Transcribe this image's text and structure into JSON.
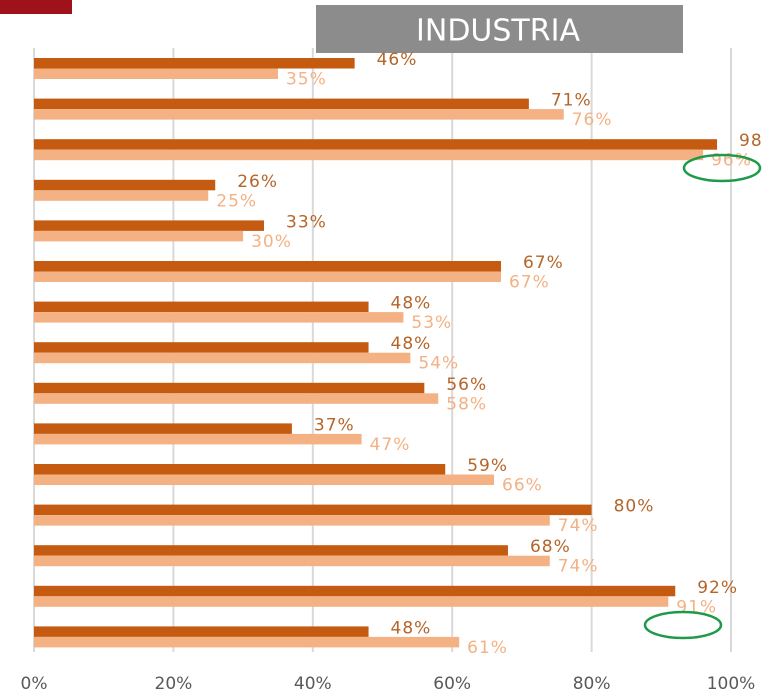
{
  "chart_data": {
    "type": "hbar",
    "annotations": [
      "INDUSTRIA"
    ],
    "categories": [
      null,
      null,
      null,
      null,
      null,
      null,
      null,
      null,
      null,
      null,
      null,
      null,
      null,
      null,
      null
    ],
    "series": [
      {
        "color": "#c55a11",
        "values": [
          46,
          71,
          98,
          26,
          33,
          67,
          48,
          48,
          56,
          37,
          59,
          80,
          68,
          92,
          48
        ],
        "value_labels": [
          "46%",
          "71%",
          "98",
          "26%",
          "33%",
          "67%",
          "48%",
          "48%",
          "56%",
          "37%",
          "59%",
          "80%",
          "68%",
          "92%",
          "48%"
        ]
      },
      {
        "color": "#f4b183",
        "values": [
          35,
          76,
          96,
          25,
          30,
          67,
          53,
          54,
          58,
          47,
          66,
          74,
          74,
          91,
          61
        ],
        "value_labels": [
          "35%",
          "76%",
          "96%",
          "25%",
          "30%",
          "67%",
          "53%",
          "54%",
          "58%",
          "47%",
          "66%",
          "74%",
          "74%",
          "91%",
          "61%"
        ]
      }
    ],
    "xlim": [
      0,
      100
    ],
    "xticks": [
      {
        "value": 0,
        "label": "0%"
      },
      {
        "value": 20,
        "label": "20%"
      },
      {
        "value": 40,
        "label": "40%"
      },
      {
        "value": 60,
        "label": "60%"
      },
      {
        "value": 80,
        "label": "80%"
      },
      {
        "value": 100,
        "label": "100%"
      }
    ],
    "grid": true
  }
}
